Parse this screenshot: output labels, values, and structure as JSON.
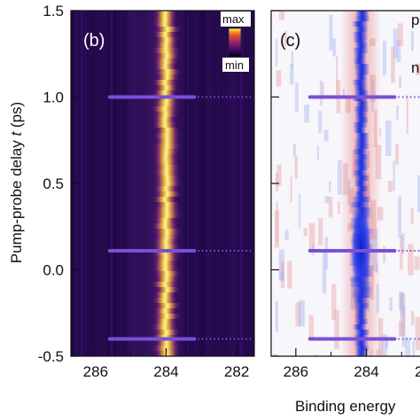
{
  "chart_data": [
    {
      "type": "heatmap",
      "panel_label": "(b)",
      "ylabel_prefix": "Pump-probe delay ",
      "ylabel_var": "t",
      "ylabel_unit": " (ps)",
      "xlim": [
        286.7,
        281.5
      ],
      "ylim": [
        -0.5,
        1.5
      ],
      "xticks": [
        286,
        284,
        282
      ],
      "yticks": [
        -0.5,
        0.0,
        0.5,
        1.0,
        1.5
      ],
      "ytick_labels": [
        "-0.5",
        "0.0",
        "0.5",
        "1.0",
        "1.5"
      ],
      "peak_center_ev": 284.0,
      "colormap": "inferno",
      "colorbar": {
        "max_label": "max",
        "min_label": "min"
      },
      "markers": [
        {
          "delay": 1.0,
          "x_start": 285.6,
          "x_solid_end": 283.2,
          "x_dotted_end": 281.6
        },
        {
          "delay": 0.11,
          "x_start": 285.6,
          "x_solid_end": 283.2,
          "x_dotted_end": 281.6
        },
        {
          "delay": -0.4,
          "x_start": 285.6,
          "x_solid_end": 283.2,
          "x_dotted_end": 281.6
        }
      ],
      "marker_color": "#7b4fd6"
    },
    {
      "type": "heatmap",
      "panel_label": "(c)",
      "xlim": [
        286.7,
        281.5
      ],
      "ylim": [
        -0.5,
        1.5
      ],
      "xticks": [
        286,
        284
      ],
      "xtick_labels_visible": [
        "286",
        "284",
        "2"
      ],
      "peak_center_ev": 284.0,
      "colormap": "diverging red-white-blue",
      "edge_text_top": "p",
      "edge_text_mid": "n",
      "markers": [
        {
          "delay": 1.0,
          "x_start": 285.6,
          "x_solid_end": 283.2
        },
        {
          "delay": 0.11,
          "x_start": 285.6,
          "x_solid_end": 283.2
        },
        {
          "delay": -0.4,
          "x_start": 285.6,
          "x_solid_end": 283.2
        }
      ]
    }
  ],
  "xlabel_shared": "Binding energy"
}
